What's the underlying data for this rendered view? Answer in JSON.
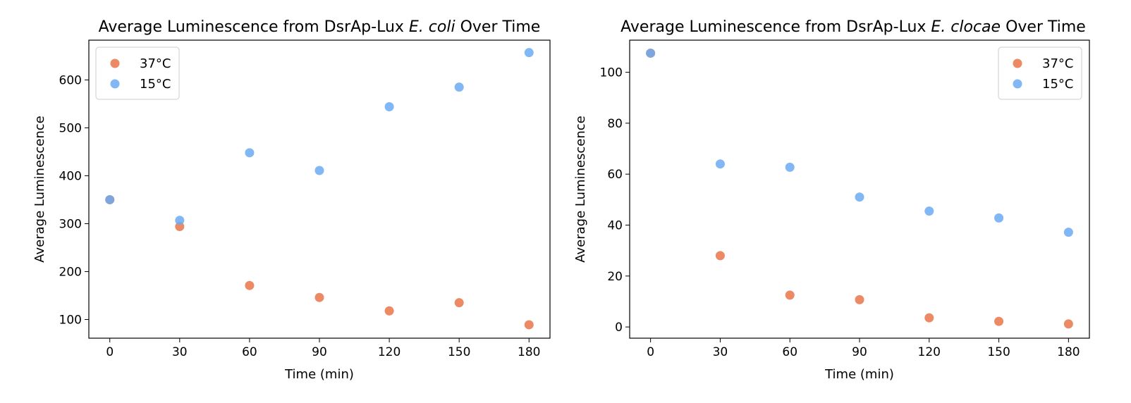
{
  "chart_data": [
    {
      "type": "scatter",
      "title_prefix": "Average Luminescence from DsrAp-Lux ",
      "title_italic": "E. coli",
      "title_suffix": " Over Time",
      "xlabel": "Time (min)",
      "ylabel": "Average Luminescence",
      "x_ticks": [
        0,
        30,
        60,
        90,
        120,
        150,
        180
      ],
      "y_ticks": [
        100,
        200,
        300,
        400,
        500,
        600
      ],
      "xlim": [
        -9,
        189
      ],
      "ylim": [
        61,
        683
      ],
      "legend_position": "top-left",
      "series": [
        {
          "name": "37°C",
          "color": "#E8764A",
          "x": [
            0,
            30,
            60,
            90,
            120,
            150,
            180
          ],
          "y": [
            350,
            294,
            171,
            146,
            118,
            135,
            89
          ]
        },
        {
          "name": "15°C",
          "color": "#6BAAF2",
          "x": [
            0,
            30,
            60,
            90,
            120,
            150,
            180
          ],
          "y": [
            350,
            307,
            448,
            411,
            544,
            585,
            657
          ]
        }
      ]
    },
    {
      "type": "scatter",
      "title_prefix": "Average Luminescence from DsrAp-Lux ",
      "title_italic": "E. clocae",
      "title_suffix": " Over Time",
      "xlabel": "Time (min)",
      "ylabel": "Average Luminescence",
      "x_ticks": [
        0,
        30,
        60,
        90,
        120,
        150,
        180
      ],
      "y_ticks": [
        0,
        20,
        40,
        60,
        80,
        100
      ],
      "xlim": [
        -9,
        189
      ],
      "ylim": [
        -4.4,
        112.6
      ],
      "legend_position": "top-right",
      "series": [
        {
          "name": "37°C",
          "color": "#E8764A",
          "x": [
            0,
            30,
            60,
            90,
            120,
            150,
            180
          ],
          "y": [
            107.5,
            28,
            12.5,
            10.7,
            3.6,
            2.2,
            1.2
          ]
        },
        {
          "name": "15°C",
          "color": "#6BAAF2",
          "x": [
            0,
            30,
            60,
            90,
            120,
            150,
            180
          ],
          "y": [
            107.5,
            64,
            62.7,
            51,
            45.5,
            42.8,
            37.2
          ]
        }
      ]
    }
  ]
}
